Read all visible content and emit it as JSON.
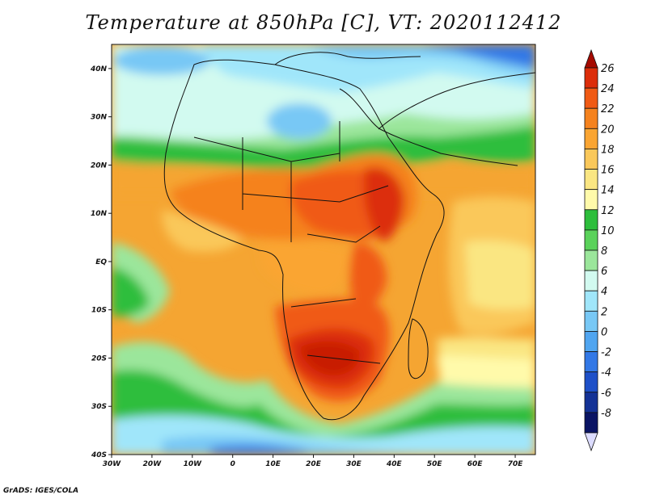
{
  "title": "Temperature at 850hPa [C], VT: 2020112412",
  "credit": "GrADS: IGES/COLA",
  "map": {
    "lon_range": [
      -30,
      75
    ],
    "lat_range": [
      -40,
      45
    ],
    "lon_ticks": [
      {
        "value": -30,
        "label": "30W"
      },
      {
        "value": -20,
        "label": "20W"
      },
      {
        "value": -10,
        "label": "10W"
      },
      {
        "value": 0,
        "label": "0"
      },
      {
        "value": 10,
        "label": "10E"
      },
      {
        "value": 20,
        "label": "20E"
      },
      {
        "value": 30,
        "label": "30E"
      },
      {
        "value": 40,
        "label": "40E"
      },
      {
        "value": 50,
        "label": "50E"
      },
      {
        "value": 60,
        "label": "60E"
      },
      {
        "value": 70,
        "label": "70E"
      }
    ],
    "lat_ticks": [
      {
        "value": 40,
        "label": "40N"
      },
      {
        "value": 30,
        "label": "30N"
      },
      {
        "value": 20,
        "label": "20N"
      },
      {
        "value": 10,
        "label": "10N"
      },
      {
        "value": 0,
        "label": "EQ"
      },
      {
        "value": -10,
        "label": "10S"
      },
      {
        "value": -20,
        "label": "20S"
      },
      {
        "value": -30,
        "label": "30S"
      },
      {
        "value": -40,
        "label": "40S"
      }
    ]
  },
  "colorbar": {
    "levels": [
      "26",
      "24",
      "22",
      "20",
      "18",
      "16",
      "14",
      "12",
      "10",
      "8",
      "6",
      "4",
      "2",
      "0",
      "-2",
      "-4",
      "-6",
      "-8"
    ],
    "colors": [
      "#a50a00",
      "#dc2d0a",
      "#f05a14",
      "#f5821e",
      "#faa532",
      "#fac85a",
      "#fae682",
      "#fffaaa",
      "#2dbe3c",
      "#5ad25a",
      "#9be69b",
      "#d2faf0",
      "#a0e6fa",
      "#78c8f5",
      "#50a5f0",
      "#3278e6",
      "#1e50c8",
      "#143296",
      "#0a1464",
      "#dcdcff"
    ]
  }
}
